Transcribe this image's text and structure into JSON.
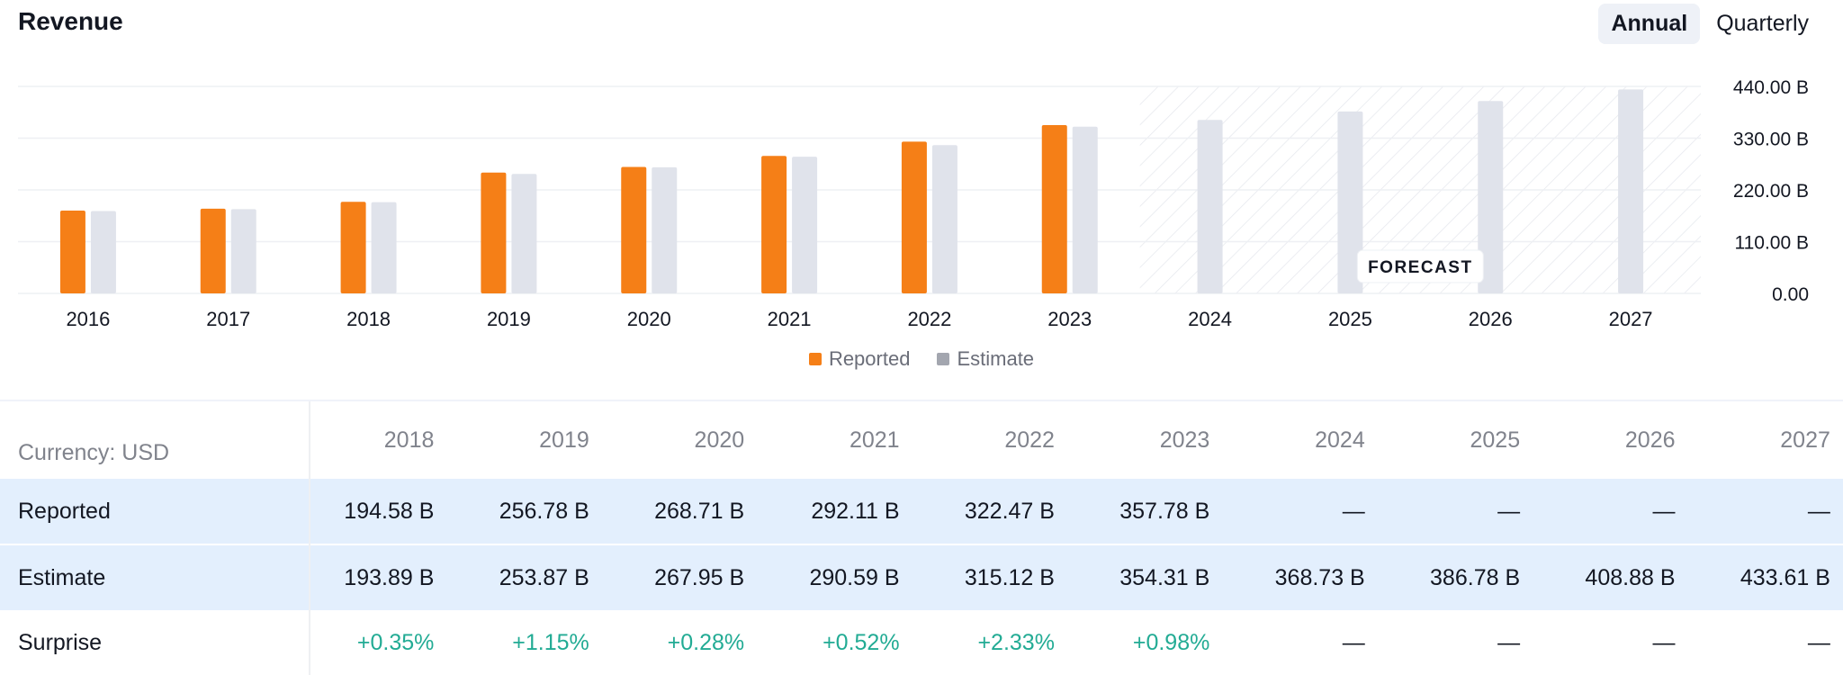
{
  "header": {
    "title": "Revenue"
  },
  "toggle": {
    "annual": "Annual",
    "quarterly": "Quarterly",
    "active": "annual"
  },
  "colors": {
    "reported": "#f57f17",
    "estimate": "#e0e3eb",
    "positive": "#22ab94",
    "highlight": "#e3effd"
  },
  "chart_data": {
    "type": "bar",
    "title": "Revenue",
    "categories": [
      "2016",
      "2017",
      "2018",
      "2019",
      "2020",
      "2021",
      "2022",
      "2023",
      "2024",
      "2025",
      "2026",
      "2027"
    ],
    "series": [
      {
        "name": "Reported",
        "values": [
          176.0,
          180.0,
          194.58,
          256.78,
          268.71,
          292.11,
          322.47,
          357.78,
          null,
          null,
          null,
          null
        ]
      },
      {
        "name": "Estimate",
        "values": [
          175.0,
          179.0,
          193.89,
          253.87,
          267.95,
          290.59,
          315.12,
          354.31,
          368.73,
          386.78,
          408.88,
          433.61
        ]
      }
    ],
    "ylim": [
      0,
      440
    ],
    "yticks": [
      "0.00",
      "110.00 B",
      "220.00 B",
      "330.00 B",
      "440.00 B"
    ],
    "forecast_label": "FORECAST",
    "forecast_from": "2024",
    "legend": {
      "position": "bottom-center",
      "items": [
        "Reported",
        "Estimate"
      ]
    },
    "grid": true
  },
  "table": {
    "currency_label": "Currency: USD",
    "years": [
      "2018",
      "2019",
      "2020",
      "2021",
      "2022",
      "2023",
      "2024",
      "2025",
      "2026",
      "2027"
    ],
    "rows": [
      {
        "label": "Reported",
        "values": [
          "194.58 B",
          "256.78 B",
          "268.71 B",
          "292.11 B",
          "322.47 B",
          "357.78 B",
          "—",
          "—",
          "—",
          "—"
        ],
        "highlight": true
      },
      {
        "label": "Estimate",
        "values": [
          "193.89 B",
          "253.87 B",
          "267.95 B",
          "290.59 B",
          "315.12 B",
          "354.31 B",
          "368.73 B",
          "386.78 B",
          "408.88 B",
          "433.61 B"
        ],
        "highlight": true
      },
      {
        "label": "Surprise",
        "values": [
          "+0.35%",
          "+1.15%",
          "+0.28%",
          "+0.52%",
          "+2.33%",
          "+0.98%",
          "—",
          "—",
          "—",
          "—"
        ],
        "highlight": false
      }
    ]
  }
}
